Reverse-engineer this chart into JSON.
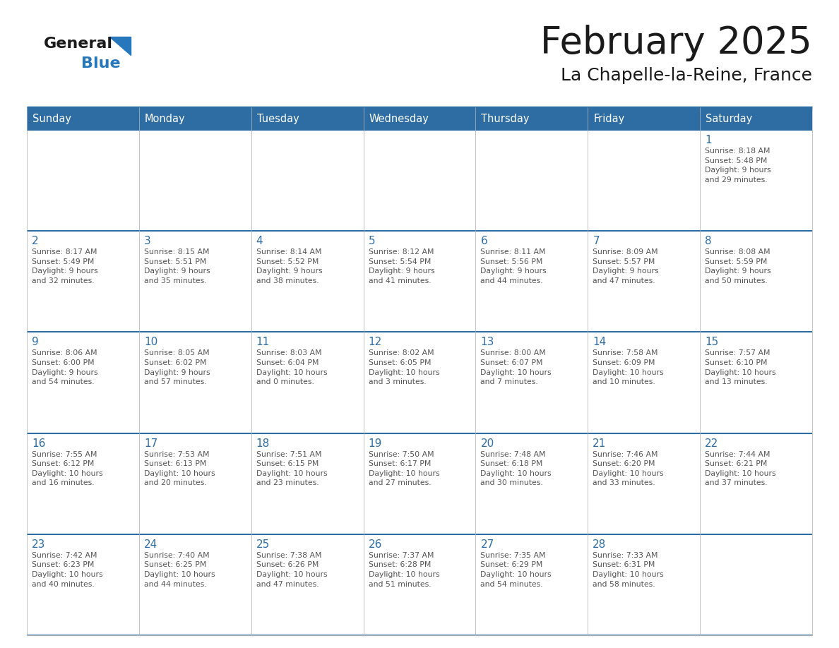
{
  "title": "February 2025",
  "subtitle": "La Chapelle-la-Reine, France",
  "header_bg": "#2E6DA4",
  "header_text": "#FFFFFF",
  "day_headers": [
    "Sunday",
    "Monday",
    "Tuesday",
    "Wednesday",
    "Thursday",
    "Friday",
    "Saturday"
  ],
  "logo_general_color": "#1a1a1a",
  "logo_blue_color": "#2777BC",
  "cell_text_color": "#555555",
  "day_num_color": "#2E6DA4",
  "line_color": "#2E6DA4",
  "grid_line_color": "#BBBBBB",
  "weeks": [
    [
      {
        "day": null,
        "info": ""
      },
      {
        "day": null,
        "info": ""
      },
      {
        "day": null,
        "info": ""
      },
      {
        "day": null,
        "info": ""
      },
      {
        "day": null,
        "info": ""
      },
      {
        "day": null,
        "info": ""
      },
      {
        "day": 1,
        "info": "Sunrise: 8:18 AM\nSunset: 5:48 PM\nDaylight: 9 hours\nand 29 minutes."
      }
    ],
    [
      {
        "day": 2,
        "info": "Sunrise: 8:17 AM\nSunset: 5:49 PM\nDaylight: 9 hours\nand 32 minutes."
      },
      {
        "day": 3,
        "info": "Sunrise: 8:15 AM\nSunset: 5:51 PM\nDaylight: 9 hours\nand 35 minutes."
      },
      {
        "day": 4,
        "info": "Sunrise: 8:14 AM\nSunset: 5:52 PM\nDaylight: 9 hours\nand 38 minutes."
      },
      {
        "day": 5,
        "info": "Sunrise: 8:12 AM\nSunset: 5:54 PM\nDaylight: 9 hours\nand 41 minutes."
      },
      {
        "day": 6,
        "info": "Sunrise: 8:11 AM\nSunset: 5:56 PM\nDaylight: 9 hours\nand 44 minutes."
      },
      {
        "day": 7,
        "info": "Sunrise: 8:09 AM\nSunset: 5:57 PM\nDaylight: 9 hours\nand 47 minutes."
      },
      {
        "day": 8,
        "info": "Sunrise: 8:08 AM\nSunset: 5:59 PM\nDaylight: 9 hours\nand 50 minutes."
      }
    ],
    [
      {
        "day": 9,
        "info": "Sunrise: 8:06 AM\nSunset: 6:00 PM\nDaylight: 9 hours\nand 54 minutes."
      },
      {
        "day": 10,
        "info": "Sunrise: 8:05 AM\nSunset: 6:02 PM\nDaylight: 9 hours\nand 57 minutes."
      },
      {
        "day": 11,
        "info": "Sunrise: 8:03 AM\nSunset: 6:04 PM\nDaylight: 10 hours\nand 0 minutes."
      },
      {
        "day": 12,
        "info": "Sunrise: 8:02 AM\nSunset: 6:05 PM\nDaylight: 10 hours\nand 3 minutes."
      },
      {
        "day": 13,
        "info": "Sunrise: 8:00 AM\nSunset: 6:07 PM\nDaylight: 10 hours\nand 7 minutes."
      },
      {
        "day": 14,
        "info": "Sunrise: 7:58 AM\nSunset: 6:09 PM\nDaylight: 10 hours\nand 10 minutes."
      },
      {
        "day": 15,
        "info": "Sunrise: 7:57 AM\nSunset: 6:10 PM\nDaylight: 10 hours\nand 13 minutes."
      }
    ],
    [
      {
        "day": 16,
        "info": "Sunrise: 7:55 AM\nSunset: 6:12 PM\nDaylight: 10 hours\nand 16 minutes."
      },
      {
        "day": 17,
        "info": "Sunrise: 7:53 AM\nSunset: 6:13 PM\nDaylight: 10 hours\nand 20 minutes."
      },
      {
        "day": 18,
        "info": "Sunrise: 7:51 AM\nSunset: 6:15 PM\nDaylight: 10 hours\nand 23 minutes."
      },
      {
        "day": 19,
        "info": "Sunrise: 7:50 AM\nSunset: 6:17 PM\nDaylight: 10 hours\nand 27 minutes."
      },
      {
        "day": 20,
        "info": "Sunrise: 7:48 AM\nSunset: 6:18 PM\nDaylight: 10 hours\nand 30 minutes."
      },
      {
        "day": 21,
        "info": "Sunrise: 7:46 AM\nSunset: 6:20 PM\nDaylight: 10 hours\nand 33 minutes."
      },
      {
        "day": 22,
        "info": "Sunrise: 7:44 AM\nSunset: 6:21 PM\nDaylight: 10 hours\nand 37 minutes."
      }
    ],
    [
      {
        "day": 23,
        "info": "Sunrise: 7:42 AM\nSunset: 6:23 PM\nDaylight: 10 hours\nand 40 minutes."
      },
      {
        "day": 24,
        "info": "Sunrise: 7:40 AM\nSunset: 6:25 PM\nDaylight: 10 hours\nand 44 minutes."
      },
      {
        "day": 25,
        "info": "Sunrise: 7:38 AM\nSunset: 6:26 PM\nDaylight: 10 hours\nand 47 minutes."
      },
      {
        "day": 26,
        "info": "Sunrise: 7:37 AM\nSunset: 6:28 PM\nDaylight: 10 hours\nand 51 minutes."
      },
      {
        "day": 27,
        "info": "Sunrise: 7:35 AM\nSunset: 6:29 PM\nDaylight: 10 hours\nand 54 minutes."
      },
      {
        "day": 28,
        "info": "Sunrise: 7:33 AM\nSunset: 6:31 PM\nDaylight: 10 hours\nand 58 minutes."
      },
      {
        "day": null,
        "info": ""
      }
    ]
  ]
}
